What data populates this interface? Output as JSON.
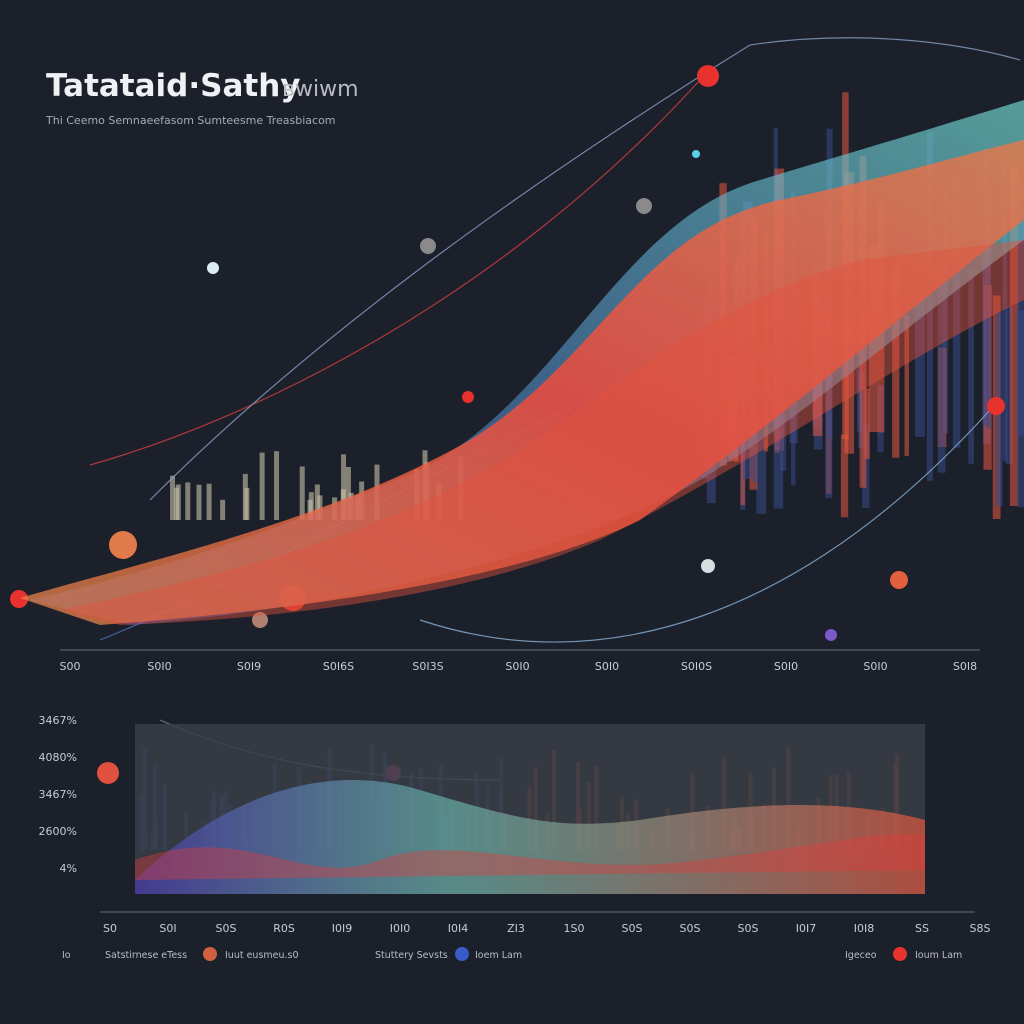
{
  "header": {
    "title": "Tatataid·Sathy",
    "title_suffix": "вwiwm",
    "subtitle": "Thi Ceemo Semnaeefasom Sumteesme Treasbiacom"
  },
  "top_panel": {
    "x_labels": [
      "S00",
      "S0I0",
      "S0I9",
      "S0I6S",
      "S0I3S",
      "S0I0",
      "S0I0",
      "S0I0S",
      "S0I0",
      "S0I0",
      "S0I8"
    ]
  },
  "bottom_panel": {
    "y_labels": [
      "3467%",
      "4080%",
      "3467%",
      "2600%",
      "4%"
    ],
    "x_labels": [
      "S0",
      "S0I",
      "S0S",
      "R0S",
      "I0I9",
      "I0I0",
      "I0I4",
      "ZI3",
      "1S0",
      "S0S",
      "S0S",
      "S0S",
      "I0I7",
      "I0I8",
      "SS",
      "S8S"
    ]
  },
  "legend": {
    "items": [
      "Io",
      "Satstirnese eTess",
      "Iuut eusmeu.s0",
      "Stuttery Sevsts",
      "Ioem Lam",
      "Igeceo",
      "Ioum Lam"
    ]
  }
}
